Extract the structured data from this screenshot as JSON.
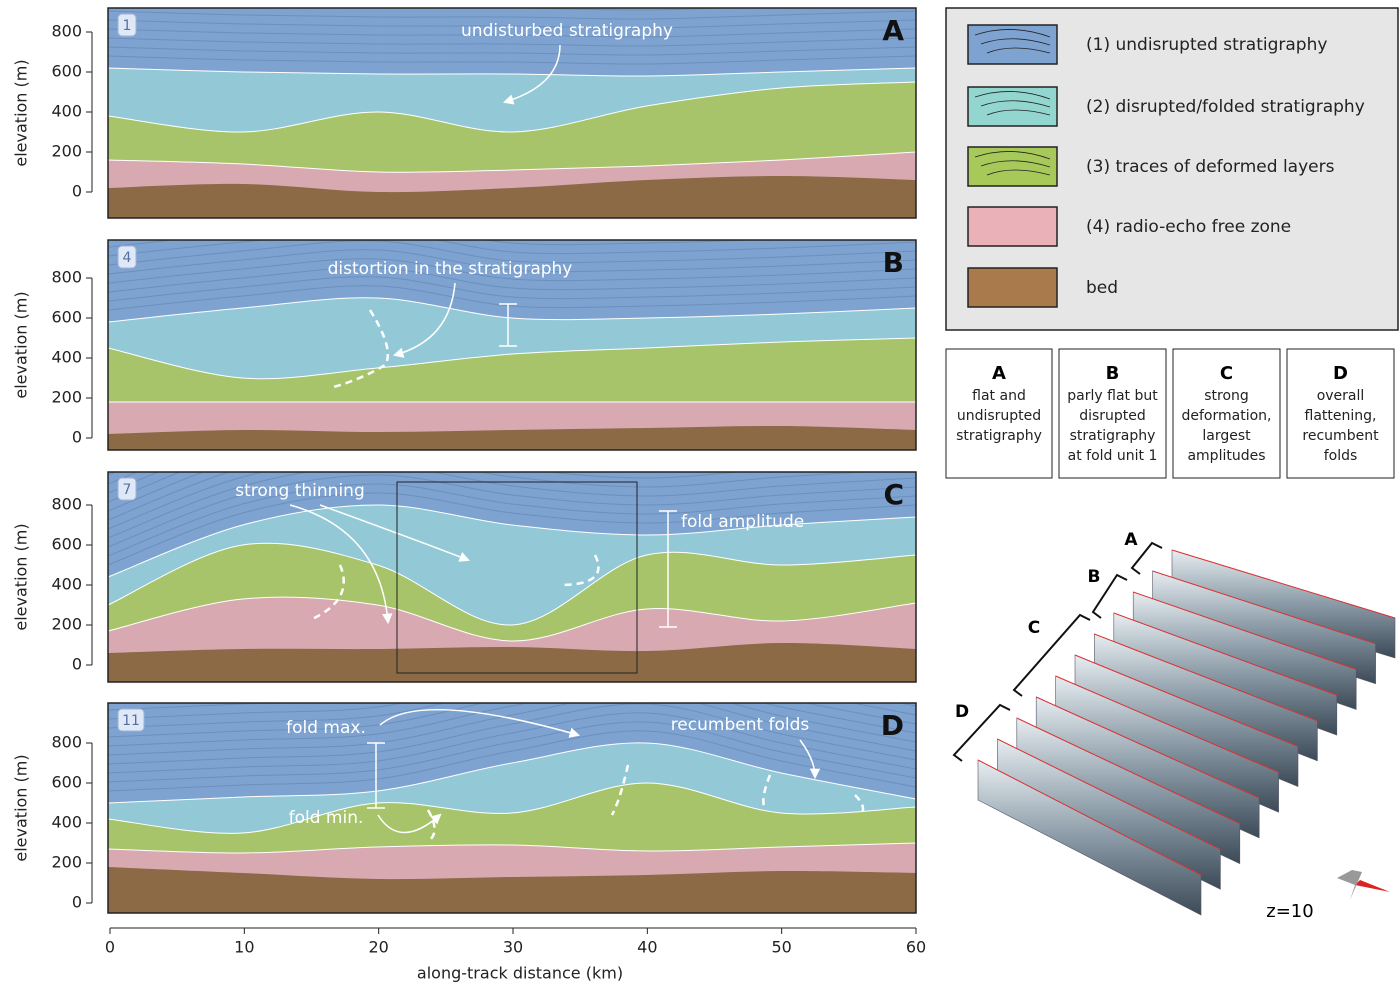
{
  "axes": {
    "y_label": "elevation (m)",
    "y_ticks": [
      0,
      200,
      400,
      600,
      800
    ],
    "x_label": "along-track distance (km)",
    "x_ticks": [
      0,
      10,
      20,
      30,
      40,
      50,
      60
    ]
  },
  "panels": [
    {
      "number": "1",
      "letter": "A",
      "annotations": [
        "undisturbed stratigraphy"
      ]
    },
    {
      "number": "4",
      "letter": "B",
      "annotations": [
        "distortion in the stratigraphy"
      ]
    },
    {
      "number": "7",
      "letter": "C",
      "annotations": [
        "strong thinning",
        "fold amplitude"
      ]
    },
    {
      "number": "11",
      "letter": "D",
      "annotations": [
        "fold max.",
        "fold min.",
        "recumbent folds"
      ]
    }
  ],
  "legend": [
    {
      "label": "(1) undisrupted stratigraphy"
    },
    {
      "label": "(2) disrupted/folded stratigraphy"
    },
    {
      "label": "(3) traces of deformed layers"
    },
    {
      "label": "(4) radio-echo free zone"
    },
    {
      "label": "bed"
    }
  ],
  "descriptions": [
    {
      "letter": "A",
      "lines": [
        "flat and",
        "undisrupted",
        "stratigraphy"
      ]
    },
    {
      "letter": "B",
      "lines": [
        "parly flat but",
        "disrupted",
        "stratigraphy",
        "at fold unit 1"
      ]
    },
    {
      "letter": "C",
      "lines": [
        "strong",
        "deformation,",
        "largest",
        "amplitudes"
      ]
    },
    {
      "letter": "D",
      "lines": [
        "overall",
        "flattening,",
        "recumbent",
        "folds"
      ]
    }
  ],
  "inset": {
    "labels": [
      "A",
      "B",
      "C",
      "D"
    ],
    "caption": "z=10"
  }
}
